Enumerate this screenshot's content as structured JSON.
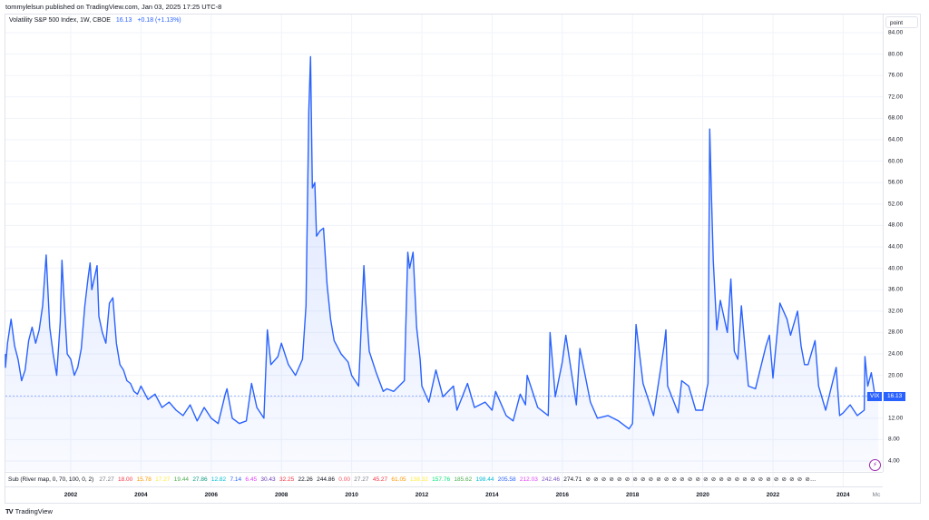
{
  "header": {
    "published": "tommylelsun published on TradingView.com, Jan 03, 2025 17:25 UTC-8",
    "symbol_title": "Volatility S&P 500 Index, 1W, CBOE",
    "last": "16.13",
    "change": "+0.18 (+1.13%)"
  },
  "price_scale": {
    "unit_label": "point",
    "ticks": [
      "84.00",
      "80.00",
      "76.00",
      "72.00",
      "68.00",
      "64.00",
      "60.00",
      "56.00",
      "52.00",
      "48.00",
      "44.00",
      "40.00",
      "36.00",
      "32.00",
      "28.00",
      "24.00",
      "20.00",
      "12.00",
      "8.00",
      "4.00"
    ],
    "last_label_symbol": "VIX",
    "last_label_value": "16.13"
  },
  "time_scale": {
    "ticks": [
      "2002",
      "2004",
      "2006",
      "2008",
      "2010",
      "2012",
      "2014",
      "2016",
      "2018",
      "2020",
      "2022",
      "2024",
      "Mc"
    ]
  },
  "sub_indicator": {
    "title": "Sub (River map, 0, 70, 100, 0, 2)",
    "values": [
      {
        "v": "27.27",
        "c": "#787b86"
      },
      {
        "v": "18.00",
        "c": "#f23645"
      },
      {
        "v": "15.78",
        "c": "#ff9800"
      },
      {
        "v": "17.27",
        "c": "#ffeb3b"
      },
      {
        "v": "19.44",
        "c": "#4caf50"
      },
      {
        "v": "27.86",
        "c": "#089981"
      },
      {
        "v": "12.82",
        "c": "#00bcd4"
      },
      {
        "v": "7.14",
        "c": "#2962ff"
      },
      {
        "v": "6.45",
        "c": "#e040fb"
      },
      {
        "v": "30.43",
        "c": "#673ab7"
      },
      {
        "v": "32.25",
        "c": "#f23645"
      },
      {
        "v": "22.26",
        "c": "#131722"
      },
      {
        "v": "244.86",
        "c": "#131722"
      },
      {
        "v": "0.00",
        "c": "#f7525f"
      },
      {
        "v": "27.27",
        "c": "#787b86"
      },
      {
        "v": "45.27",
        "c": "#f23645"
      },
      {
        "v": "61.05",
        "c": "#ff9800"
      },
      {
        "v": "138.32",
        "c": "#ffeb3b"
      },
      {
        "v": "157.76",
        "c": "#00e676"
      },
      {
        "v": "185.62",
        "c": "#4caf50"
      },
      {
        "v": "198.44",
        "c": "#00bcd4"
      },
      {
        "v": "205.58",
        "c": "#2962ff"
      },
      {
        "v": "212.03",
        "c": "#e040fb"
      },
      {
        "v": "242.46",
        "c": "#7e57c2"
      },
      {
        "v": "274.71",
        "c": "#131722"
      }
    ],
    "na_symbol": "⊘",
    "na_count": 29
  },
  "series_color": "#2962ff",
  "brand": "TradingView",
  "chart_data": {
    "type": "area",
    "title": "Volatility S&P 500 Index, 1W, CBOE",
    "xlabel": "",
    "ylabel": "point",
    "ylim": [
      0,
      86
    ],
    "grid": true,
    "legend_position": "top-left",
    "last_value": 16.13,
    "x": [
      2000.0,
      2000.1,
      2000.2,
      2000.3,
      2000.4,
      2000.5,
      2000.6,
      2000.7,
      2000.8,
      2000.9,
      2001.0,
      2001.1,
      2001.2,
      2001.3,
      2001.4,
      2001.5,
      2001.6,
      2001.7,
      2001.75,
      2001.8,
      2001.9,
      2002.0,
      2002.1,
      2002.2,
      2002.3,
      2002.4,
      2002.5,
      2002.55,
      2002.6,
      2002.7,
      2002.75,
      2002.8,
      2002.9,
      2003.0,
      2003.1,
      2003.2,
      2003.3,
      2003.4,
      2003.5,
      2003.6,
      2003.7,
      2003.8,
      2003.9,
      2004.0,
      2004.2,
      2004.4,
      2004.6,
      2004.8,
      2005.0,
      2005.2,
      2005.4,
      2005.6,
      2005.8,
      2006.0,
      2006.2,
      2006.4,
      2006.45,
      2006.6,
      2006.8,
      2007.0,
      2007.15,
      2007.3,
      2007.5,
      2007.6,
      2007.7,
      2007.9,
      2008.0,
      2008.2,
      2008.4,
      2008.6,
      2008.7,
      2008.78,
      2008.83,
      2008.88,
      2008.95,
      2009.0,
      2009.1,
      2009.2,
      2009.3,
      2009.4,
      2009.5,
      2009.7,
      2009.9,
      2010.0,
      2010.2,
      2010.35,
      2010.4,
      2010.5,
      2010.7,
      2010.9,
      2011.0,
      2011.2,
      2011.5,
      2011.6,
      2011.65,
      2011.75,
      2011.85,
      2011.95,
      2012.0,
      2012.2,
      2012.4,
      2012.6,
      2012.9,
      2013.0,
      2013.3,
      2013.5,
      2013.8,
      2014.0,
      2014.1,
      2014.4,
      2014.6,
      2014.8,
      2014.95,
      2015.0,
      2015.3,
      2015.6,
      2015.65,
      2015.8,
      2016.0,
      2016.1,
      2016.4,
      2016.5,
      2016.8,
      2017.0,
      2017.3,
      2017.6,
      2017.9,
      2018.0,
      2018.1,
      2018.3,
      2018.6,
      2018.9,
      2018.95,
      2019.0,
      2019.3,
      2019.4,
      2019.6,
      2019.8,
      2020.0,
      2020.1,
      2020.15,
      2020.2,
      2020.25,
      2020.3,
      2020.4,
      2020.5,
      2020.7,
      2020.8,
      2020.9,
      2021.0,
      2021.1,
      2021.3,
      2021.5,
      2021.8,
      2021.9,
      2022.0,
      2022.2,
      2022.4,
      2022.5,
      2022.7,
      2022.8,
      2022.9,
      2023.0,
      2023.2,
      2023.3,
      2023.5,
      2023.8,
      2023.9,
      2024.0,
      2024.2,
      2024.4,
      2024.6,
      2024.62,
      2024.7,
      2024.8,
      2024.9,
      2025.0
    ],
    "values": [
      24.0,
      21.5,
      26.0,
      30.5,
      25.5,
      23.0,
      19.0,
      21.0,
      26.5,
      29.0,
      26.0,
      28.5,
      33.0,
      42.5,
      29.0,
      24.0,
      20.0,
      30.0,
      41.5,
      35.0,
      24.0,
      23.0,
      20.0,
      21.5,
      25.0,
      33.0,
      38.5,
      41.0,
      36.0,
      39.0,
      40.5,
      31.0,
      28.0,
      26.0,
      33.5,
      34.5,
      26.0,
      22.0,
      21.0,
      19.0,
      18.5,
      17.0,
      16.5,
      18.0,
      15.5,
      16.5,
      14.0,
      15.0,
      13.5,
      12.5,
      14.5,
      11.5,
      14.0,
      12.0,
      11.0,
      16.5,
      17.5,
      12.0,
      11.0,
      11.5,
      18.5,
      14.0,
      12.0,
      28.5,
      22.0,
      23.5,
      26.0,
      22.0,
      20.0,
      23.0,
      33.0,
      69.5,
      79.5,
      55.0,
      56.0,
      46.0,
      47.0,
      47.5,
      37.0,
      30.5,
      26.5,
      24.0,
      22.5,
      20.0,
      18.0,
      40.5,
      34.0,
      24.5,
      20.5,
      17.0,
      17.5,
      17.0,
      19.0,
      43.0,
      40.0,
      43.0,
      29.0,
      23.0,
      18.0,
      15.0,
      21.0,
      16.0,
      18.0,
      13.5,
      18.5,
      14.0,
      15.0,
      13.5,
      17.0,
      12.5,
      11.5,
      16.5,
      14.5,
      20.0,
      14.0,
      12.5,
      28.0,
      16.0,
      22.5,
      27.5,
      14.5,
      25.0,
      15.0,
      12.0,
      12.5,
      11.5,
      10.0,
      11.0,
      29.5,
      18.5,
      12.5,
      25.5,
      28.5,
      18.0,
      13.0,
      19.0,
      18.0,
      13.5,
      13.5,
      17.0,
      18.5,
      66.0,
      53.0,
      41.5,
      28.5,
      34.0,
      28.0,
      38.0,
      24.5,
      23.0,
      33.0,
      18.0,
      17.5,
      25.5,
      27.5,
      19.5,
      33.5,
      30.5,
      27.5,
      32.0,
      25.5,
      22.0,
      22.0,
      26.5,
      18.0,
      13.5,
      21.5,
      12.5,
      13.0,
      14.5,
      12.5,
      13.5,
      23.5,
      18.0,
      20.5,
      16.5,
      16.13
    ]
  }
}
